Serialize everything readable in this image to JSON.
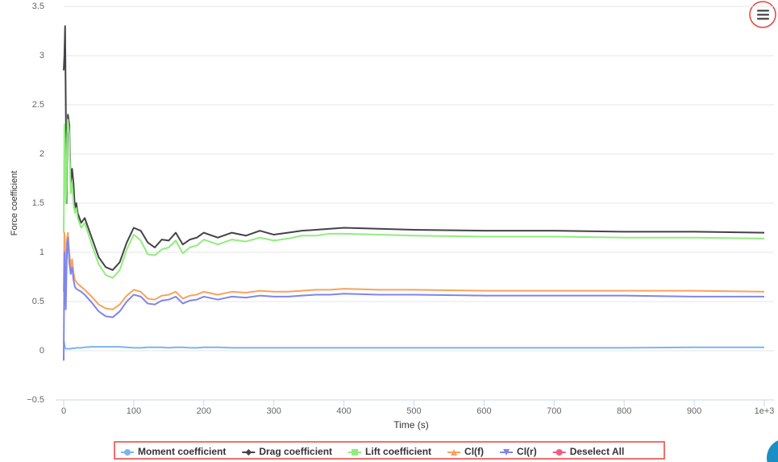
{
  "chart_data": {
    "type": "line",
    "x_label": "Time (s)",
    "y_label": "Force coefficient",
    "x": [
      0,
      1,
      2,
      3,
      4,
      5,
      6,
      8,
      10,
      12,
      14,
      16,
      18,
      20,
      25,
      30,
      40,
      50,
      60,
      70,
      80,
      90,
      100,
      110,
      120,
      130,
      140,
      150,
      160,
      170,
      180,
      190,
      200,
      220,
      240,
      260,
      280,
      300,
      320,
      340,
      360,
      380,
      400,
      450,
      500,
      600,
      700,
      800,
      900,
      1000
    ],
    "series": [
      {
        "name": "Moment coefficient",
        "color": "#7cb5ec",
        "marker": "circle",
        "values": [
          0.1,
          0.07,
          0.03,
          0.02,
          0.02,
          0.02,
          0.02,
          0.02,
          0.02,
          0.025,
          0.025,
          0.025,
          0.03,
          0.03,
          0.03,
          0.035,
          0.04,
          0.04,
          0.04,
          0.04,
          0.04,
          0.035,
          0.03,
          0.03,
          0.035,
          0.035,
          0.035,
          0.03,
          0.035,
          0.035,
          0.03,
          0.03,
          0.035,
          0.035,
          0.03,
          0.03,
          0.03,
          0.03,
          0.03,
          0.03,
          0.03,
          0.03,
          0.03,
          0.03,
          0.03,
          0.03,
          0.03,
          0.03,
          0.035,
          0.035
        ]
      },
      {
        "name": "Drag coefficient",
        "color": "#434348",
        "marker": "diamond",
        "values": [
          2.85,
          3.0,
          3.3,
          2.5,
          1.5,
          2.0,
          2.4,
          2.3,
          1.7,
          1.85,
          1.7,
          1.45,
          1.5,
          1.4,
          1.3,
          1.35,
          1.15,
          0.95,
          0.85,
          0.82,
          0.9,
          1.1,
          1.25,
          1.22,
          1.1,
          1.05,
          1.13,
          1.12,
          1.2,
          1.08,
          1.13,
          1.15,
          1.2,
          1.15,
          1.2,
          1.17,
          1.22,
          1.18,
          1.2,
          1.22,
          1.23,
          1.24,
          1.25,
          1.24,
          1.23,
          1.22,
          1.22,
          1.21,
          1.21,
          1.2
        ]
      },
      {
        "name": "Lift coefficient",
        "color": "#90ed7d",
        "marker": "square",
        "values": [
          1.2,
          2.3,
          2.1,
          1.5,
          1.7,
          2.2,
          2.35,
          2.2,
          1.6,
          1.7,
          1.5,
          1.4,
          1.45,
          1.35,
          1.25,
          1.3,
          1.08,
          0.88,
          0.77,
          0.74,
          0.82,
          1.03,
          1.18,
          1.12,
          0.98,
          0.97,
          1.03,
          1.05,
          1.12,
          0.99,
          1.05,
          1.07,
          1.13,
          1.08,
          1.13,
          1.11,
          1.15,
          1.12,
          1.14,
          1.17,
          1.17,
          1.19,
          1.19,
          1.18,
          1.17,
          1.16,
          1.16,
          1.15,
          1.15,
          1.14
        ]
      },
      {
        "name": "Cl(f)",
        "color": "#f7a35c",
        "marker": "triangle",
        "values": [
          0.6,
          1.2,
          1.1,
          0.7,
          0.9,
          1.15,
          1.2,
          1.0,
          0.85,
          0.93,
          0.8,
          0.72,
          0.7,
          0.68,
          0.65,
          0.62,
          0.55,
          0.47,
          0.43,
          0.42,
          0.47,
          0.56,
          0.62,
          0.6,
          0.53,
          0.52,
          0.56,
          0.57,
          0.6,
          0.53,
          0.56,
          0.57,
          0.6,
          0.57,
          0.6,
          0.59,
          0.61,
          0.6,
          0.6,
          0.61,
          0.62,
          0.62,
          0.63,
          0.62,
          0.62,
          0.61,
          0.61,
          0.61,
          0.61,
          0.6
        ]
      },
      {
        "name": "Cl(r)",
        "color": "#8085e9",
        "marker": "triangle-down",
        "values": [
          -0.1,
          1.0,
          0.8,
          0.42,
          0.8,
          1.1,
          1.15,
          0.9,
          0.78,
          0.85,
          0.72,
          0.65,
          0.63,
          0.62,
          0.6,
          0.57,
          0.49,
          0.4,
          0.35,
          0.34,
          0.4,
          0.5,
          0.57,
          0.55,
          0.48,
          0.47,
          0.51,
          0.52,
          0.55,
          0.48,
          0.51,
          0.52,
          0.55,
          0.52,
          0.55,
          0.54,
          0.56,
          0.55,
          0.55,
          0.56,
          0.57,
          0.57,
          0.58,
          0.57,
          0.57,
          0.56,
          0.56,
          0.56,
          0.55,
          0.55
        ]
      }
    ],
    "legend_extra": {
      "name": "Deselect All",
      "color": "#f15c80",
      "marker": "circle"
    },
    "xlim": [
      0,
      1000
    ],
    "xticks": [
      0,
      100,
      200,
      300,
      400,
      500,
      600,
      700,
      800,
      900,
      {
        "value": 1000,
        "label": "1e+3"
      }
    ],
    "ylim": [
      -0.5,
      3.5
    ],
    "yticks": [
      {
        "value": -0.5,
        "label": "−0.5"
      },
      0,
      0.5,
      1,
      1.5,
      2,
      2.5,
      3,
      3.5
    ],
    "grid": true,
    "legend": "bottom"
  }
}
